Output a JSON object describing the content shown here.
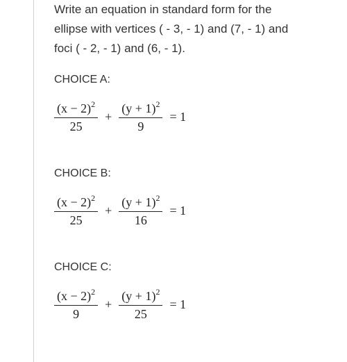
{
  "question": {
    "line1": "Write an equation in standard form for the",
    "line2": "ellipse with vertices ( - 3, - 1) and (7, - 1) and",
    "line3": "foci ( - 2, - 1) and (6, - 1)."
  },
  "choices": [
    {
      "label": "CHOICE A:",
      "equation": {
        "frac1_num": "(x − 2)",
        "frac1_exp": "2",
        "frac1_den": "25",
        "op": "+",
        "frac2_num": "(y + 1)",
        "frac2_exp": "2",
        "frac2_den": "9",
        "rhs": "= 1"
      }
    },
    {
      "label": "CHOICE B:",
      "equation": {
        "frac1_num": "(x − 2)",
        "frac1_exp": "2",
        "frac1_den": "25",
        "op": "+",
        "frac2_num": "(y + 1)",
        "frac2_exp": "2",
        "frac2_den": "16",
        "rhs": "= 1"
      }
    },
    {
      "label": "CHOICE C:",
      "equation": {
        "frac1_num": "(x − 2)",
        "frac1_exp": "2",
        "frac1_den": "9",
        "op": "+",
        "frac2_num": "(y + 1)",
        "frac2_exp": "2",
        "frac2_den": "25",
        "rhs": "= 1"
      }
    }
  ]
}
